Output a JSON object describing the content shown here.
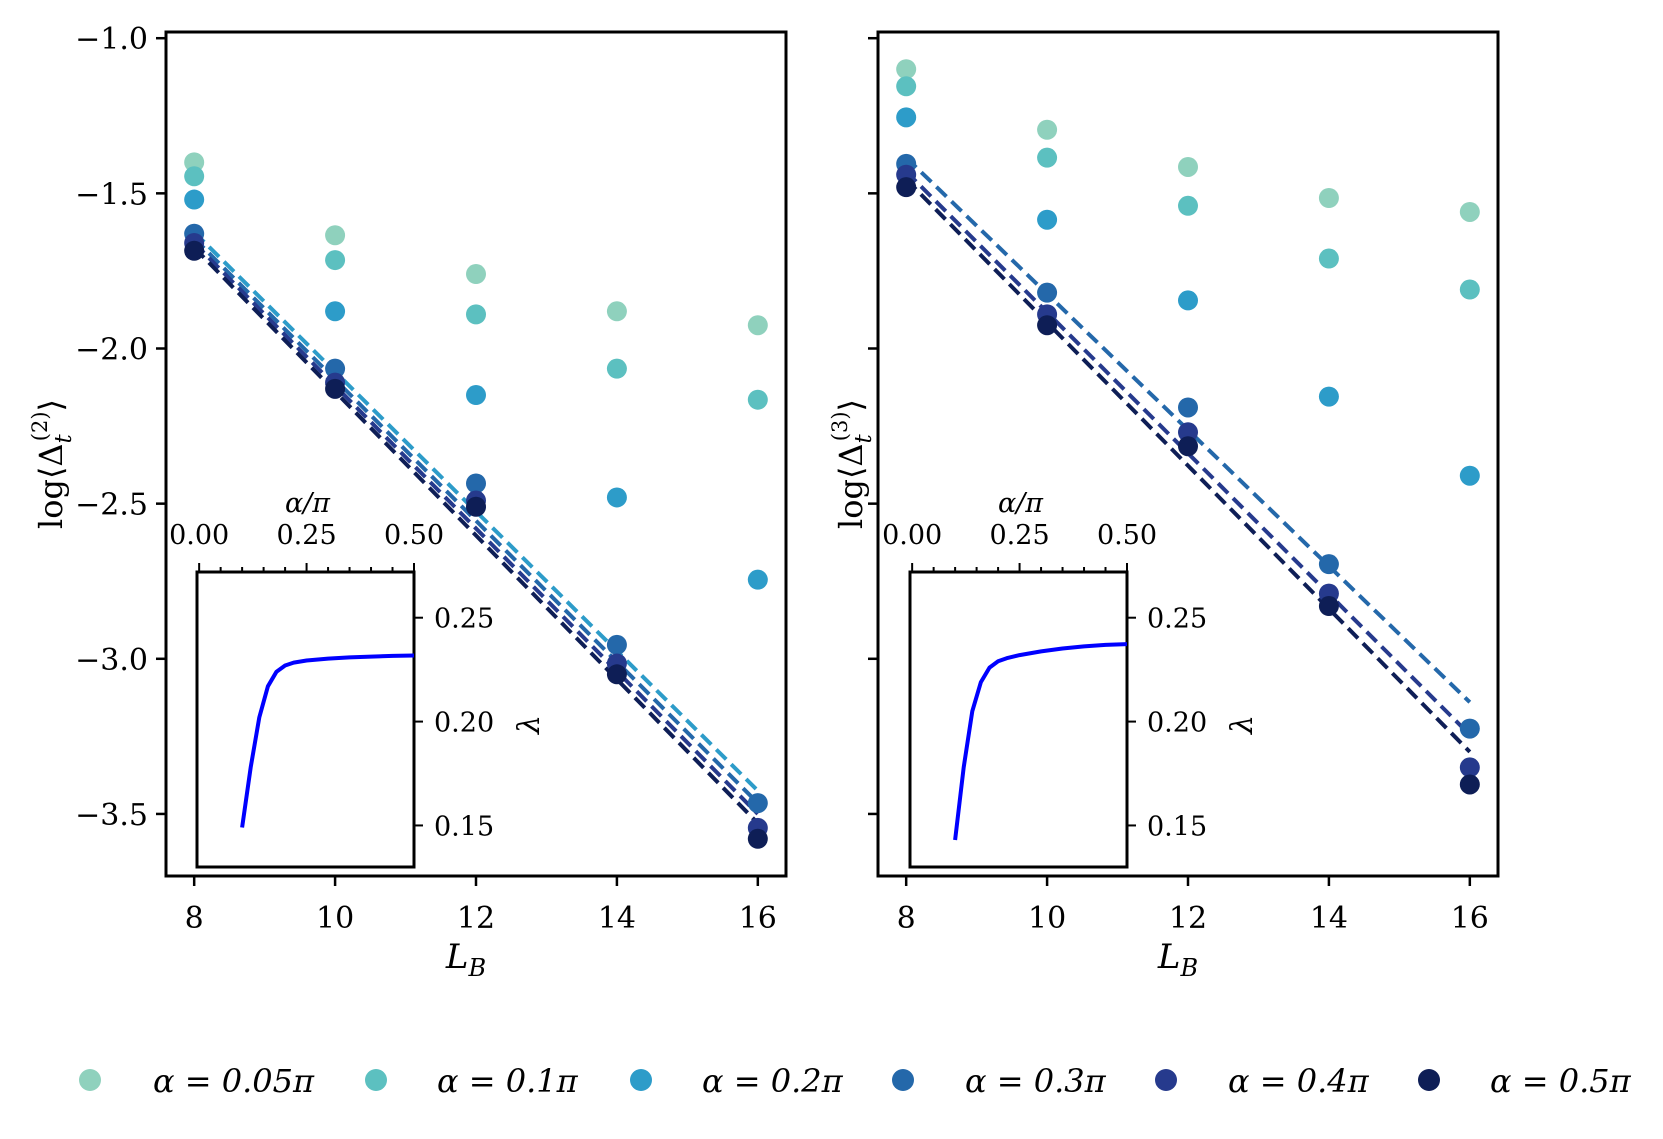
{
  "figure_title": "",
  "legend": {
    "placement": "bottom-center",
    "entries": [
      {
        "label": "α = 0.05π",
        "color": "#8fd1bd"
      },
      {
        "label": "α = 0.1π",
        "color": "#5cc0c0"
      },
      {
        "label": "α = 0.2π",
        "color": "#2d9cc9"
      },
      {
        "label": "α = 0.3π",
        "color": "#2468aa"
      },
      {
        "label": "α = 0.4π",
        "color": "#263a8d"
      },
      {
        "label": "α = 0.5π",
        "color": "#0e1e56"
      }
    ]
  },
  "chart_data": [
    {
      "type": "scatter",
      "panel": "left",
      "title": "",
      "xlabel": "L_B",
      "ylabel": "log⟨Δ_t^(2)⟩",
      "xlim": [
        7.6,
        16.4
      ],
      "ylim": [
        -3.7,
        -0.98
      ],
      "xticks": [
        8,
        10,
        12,
        14,
        16
      ],
      "xtick_labels": [
        "8",
        "10",
        "12",
        "14",
        "16"
      ],
      "yticks": [
        -1.0,
        -1.5,
        -2.0,
        -2.5,
        -3.0,
        -3.5
      ],
      "ytick_labels": [
        "−1.0",
        "−1.5",
        "−2.0",
        "−2.5",
        "−3.0",
        "−3.5"
      ],
      "grid": false,
      "x": [
        8,
        10,
        12,
        14,
        16
      ],
      "series": [
        {
          "name": "α = 0.05π",
          "color": "#8fd1bd",
          "values": [
            -1.4,
            -1.635,
            -1.76,
            -1.88,
            -1.925
          ]
        },
        {
          "name": "α = 0.1π",
          "color": "#5cc0c0",
          "values": [
            -1.445,
            -1.715,
            -1.89,
            -2.065,
            -2.165
          ]
        },
        {
          "name": "α = 0.2π",
          "color": "#2d9cc9",
          "values": [
            -1.52,
            -1.88,
            -2.15,
            -2.48,
            -2.745
          ],
          "fit": [
            -1.625,
            -3.425
          ]
        },
        {
          "name": "α = 0.3π",
          "color": "#2468aa",
          "values": [
            -1.63,
            -2.065,
            -2.435,
            -2.955,
            -3.465
          ],
          "fit": [
            -1.645,
            -3.465
          ]
        },
        {
          "name": "α = 0.4π",
          "color": "#263a8d",
          "values": [
            -1.66,
            -2.11,
            -2.49,
            -3.015,
            -3.545
          ],
          "fit": [
            -1.66,
            -3.5
          ]
        },
        {
          "name": "α = 0.5π",
          "color": "#0e1e56",
          "values": [
            -1.685,
            -2.13,
            -2.51,
            -3.05,
            -3.58
          ],
          "fit": [
            -1.675,
            -3.53
          ]
        }
      ],
      "inset": {
        "type": "line",
        "xlabel": "α/π",
        "ylabel": "λ",
        "xlim": [
          -0.005,
          0.5
        ],
        "ylim": [
          0.13,
          0.272
        ],
        "xticks": [
          0.0,
          0.25,
          0.5
        ],
        "xtick_labels": [
          "0.00",
          "0.25",
          "0.50"
        ],
        "yticks": [
          0.15,
          0.2,
          0.25
        ],
        "ytick_labels": [
          "0.15",
          "0.20",
          "0.25"
        ],
        "color": "#0000ff",
        "x": [
          0.1,
          0.12,
          0.14,
          0.16,
          0.18,
          0.2,
          0.22,
          0.25,
          0.3,
          0.35,
          0.4,
          0.45,
          0.5
        ],
        "y": [
          0.149,
          0.178,
          0.202,
          0.217,
          0.224,
          0.227,
          0.2284,
          0.2294,
          0.2303,
          0.2309,
          0.2313,
          0.2316,
          0.2318
        ]
      }
    },
    {
      "type": "scatter",
      "panel": "right",
      "title": "",
      "xlabel": "L_B",
      "ylabel": "log⟨Δ_t^(3)⟩",
      "xlim": [
        7.6,
        16.4
      ],
      "ylim": [
        -3.7,
        -0.98
      ],
      "xticks": [
        8,
        10,
        12,
        14,
        16
      ],
      "xtick_labels": [
        "8",
        "10",
        "12",
        "14",
        "16"
      ],
      "yticks": [
        -1.0,
        -1.5,
        -2.0,
        -2.5,
        -3.0,
        -3.5
      ],
      "ytick_labels": [
        "",
        "",
        "",
        "",
        "",
        ""
      ],
      "grid": false,
      "x": [
        8,
        10,
        12,
        14,
        16
      ],
      "series": [
        {
          "name": "α = 0.05π",
          "color": "#8fd1bd",
          "values": [
            -1.1,
            -1.295,
            -1.415,
            -1.515,
            -1.56
          ]
        },
        {
          "name": "α = 0.1π",
          "color": "#5cc0c0",
          "values": [
            -1.155,
            -1.385,
            -1.54,
            -1.71,
            -1.81
          ]
        },
        {
          "name": "α = 0.2π",
          "color": "#2d9cc9",
          "values": [
            -1.255,
            -1.585,
            -1.845,
            -2.155,
            -2.41
          ]
        },
        {
          "name": "α = 0.3π",
          "color": "#2468aa",
          "values": [
            -1.405,
            -1.82,
            -2.19,
            -2.695,
            -3.225
          ],
          "fit": [
            -1.385,
            -3.14
          ]
        },
        {
          "name": "α = 0.4π",
          "color": "#263a8d",
          "values": [
            -1.44,
            -1.89,
            -2.27,
            -2.79,
            -3.35
          ],
          "fit": [
            -1.43,
            -3.245
          ]
        },
        {
          "name": "α = 0.5π",
          "color": "#0e1e56",
          "values": [
            -1.48,
            -1.925,
            -2.315,
            -2.83,
            -3.405
          ],
          "fit": [
            -1.455,
            -3.3
          ]
        }
      ],
      "inset": {
        "type": "line",
        "xlabel": "α/π",
        "ylabel": "λ",
        "xlim": [
          -0.005,
          0.5
        ],
        "ylim": [
          0.13,
          0.272
        ],
        "xticks": [
          0.0,
          0.25,
          0.5
        ],
        "xtick_labels": [
          "0.00",
          "0.25",
          "0.50"
        ],
        "yticks": [
          0.15,
          0.2,
          0.25
        ],
        "ytick_labels": [
          "0.15",
          "0.20",
          "0.25"
        ],
        "color": "#0000ff",
        "x": [
          0.1,
          0.12,
          0.14,
          0.16,
          0.18,
          0.2,
          0.22,
          0.25,
          0.3,
          0.35,
          0.4,
          0.45,
          0.5
        ],
        "y": [
          0.143,
          0.178,
          0.205,
          0.219,
          0.226,
          0.229,
          0.2305,
          0.232,
          0.2338,
          0.2352,
          0.2362,
          0.2369,
          0.2373
        ]
      }
    }
  ]
}
